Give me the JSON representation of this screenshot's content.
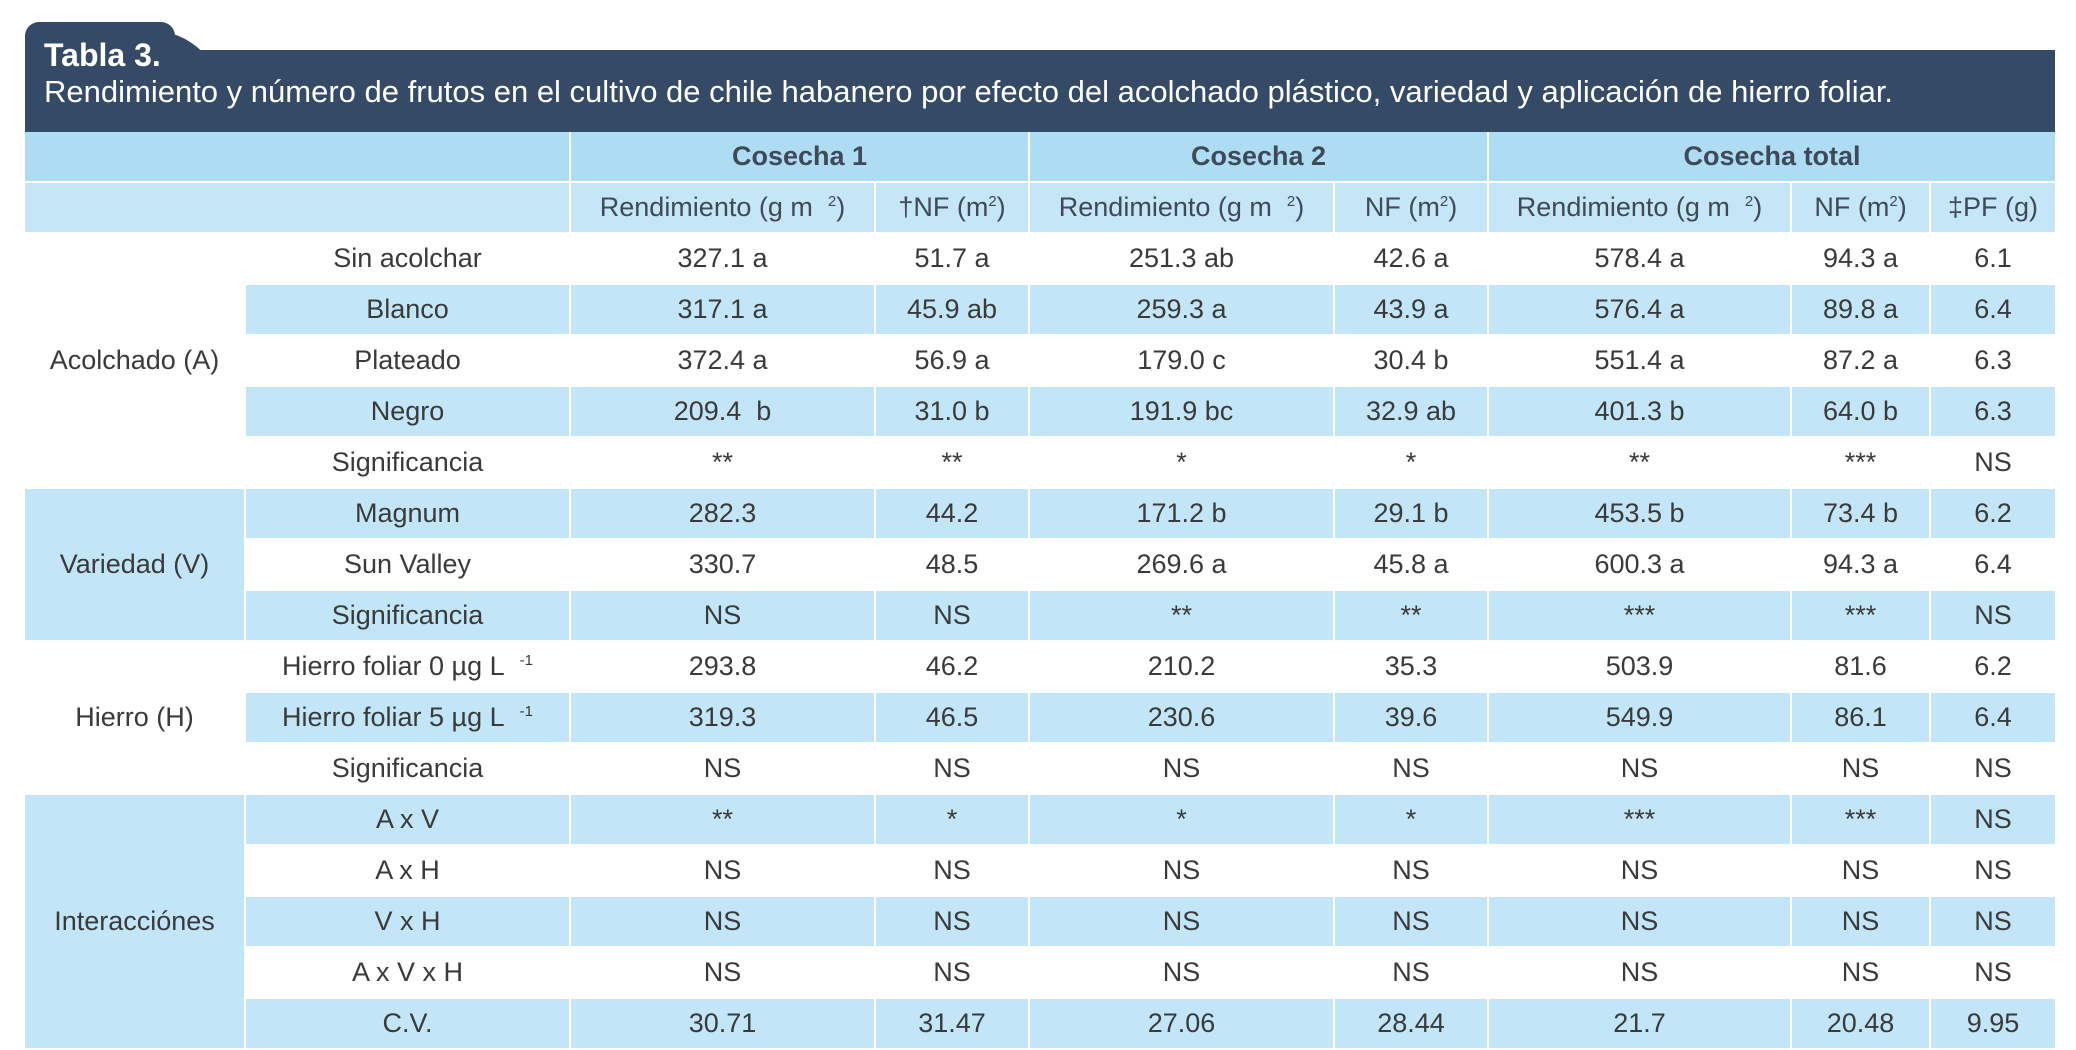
{
  "title": {
    "label": "Tabla 3.",
    "text": "Rendimiento y número de frutos en el cultivo de chile habanero por efecto del acolchado plástico, variedad y aplicación de hierro foliar."
  },
  "header": {
    "cosecha1": "Cosecha 1",
    "cosecha2": "Cosecha 2",
    "cosecha_total": "Cosecha total",
    "rend": "Rendimiento (g m",
    "rend_sup": "2",
    "nf_dagger": "†NF (m",
    "nf": "NF (m",
    "nf_sup": "2",
    "pf": "‡PF (g)"
  },
  "groups": {
    "acolchado": "Acolchado (A)",
    "variedad": "Variedad (V)",
    "hierro": "Hierro (H)",
    "interacciones": "Interacciónes"
  },
  "rows": [
    {
      "label": "Sin acolchar",
      "v": [
        "327.1 a",
        "51.7 a",
        "251.3 ab",
        "42.6 a",
        "578.4 a",
        "94.3 a",
        "6.1"
      ]
    },
    {
      "label": "Blanco",
      "v": [
        "317.1 a",
        "45.9 ab",
        "259.3 a",
        "43.9 a",
        "576.4 a",
        "89.8 a",
        "6.4"
      ]
    },
    {
      "label": "Plateado",
      "v": [
        "372.4 a",
        "56.9 a",
        "179.0 c",
        "30.4 b",
        "551.4 a",
        "87.2 a",
        "6.3"
      ]
    },
    {
      "label": "Negro",
      "v": [
        "209.4  b",
        "31.0 b",
        "191.9 bc",
        "32.9 ab",
        "401.3 b",
        "64.0 b",
        "6.3"
      ]
    },
    {
      "label": "Significancia",
      "v": [
        "**",
        "**",
        "*",
        "*",
        "**",
        "***",
        "NS"
      ]
    },
    {
      "label": "Magnum",
      "v": [
        "282.3",
        "44.2",
        "171.2 b",
        "29.1 b",
        "453.5 b",
        "73.4 b",
        "6.2"
      ]
    },
    {
      "label": "Sun Valley",
      "v": [
        "330.7",
        "48.5",
        "269.6 a",
        "45.8 a",
        "600.3 a",
        "94.3 a",
        "6.4"
      ]
    },
    {
      "label": "Significancia",
      "v": [
        "NS",
        "NS",
        "**",
        "**",
        "***",
        "***",
        "NS"
      ]
    },
    {
      "label": "Hierro foliar 0 µg L",
      "sup": "-1",
      "v": [
        "293.8",
        "46.2",
        "210.2",
        "35.3",
        "503.9",
        "81.6",
        "6.2"
      ]
    },
    {
      "label": "Hierro foliar 5 µg L",
      "sup": "-1",
      "v": [
        "319.3",
        "46.5",
        "230.6",
        "39.6",
        "549.9",
        "86.1",
        "6.4"
      ]
    },
    {
      "label": "Significancia",
      "v": [
        "NS",
        "NS",
        "NS",
        "NS",
        "NS",
        "NS",
        "NS"
      ]
    },
    {
      "label": "A x V",
      "v": [
        "**",
        "*",
        "*",
        "*",
        "***",
        "***",
        "NS"
      ]
    },
    {
      "label": "A x H",
      "v": [
        "NS",
        "NS",
        "NS",
        "NS",
        "NS",
        "NS",
        "NS"
      ]
    },
    {
      "label": "V x H",
      "v": [
        "NS",
        "NS",
        "NS",
        "NS",
        "NS",
        "NS",
        "NS"
      ]
    },
    {
      "label": "A x V x H",
      "v": [
        "NS",
        "NS",
        "NS",
        "NS",
        "NS",
        "NS",
        "NS"
      ]
    },
    {
      "label": "C.V.",
      "v": [
        "30.71",
        "31.47",
        "27.06",
        "28.44",
        "21.7",
        "20.48",
        "9.95"
      ]
    }
  ]
}
